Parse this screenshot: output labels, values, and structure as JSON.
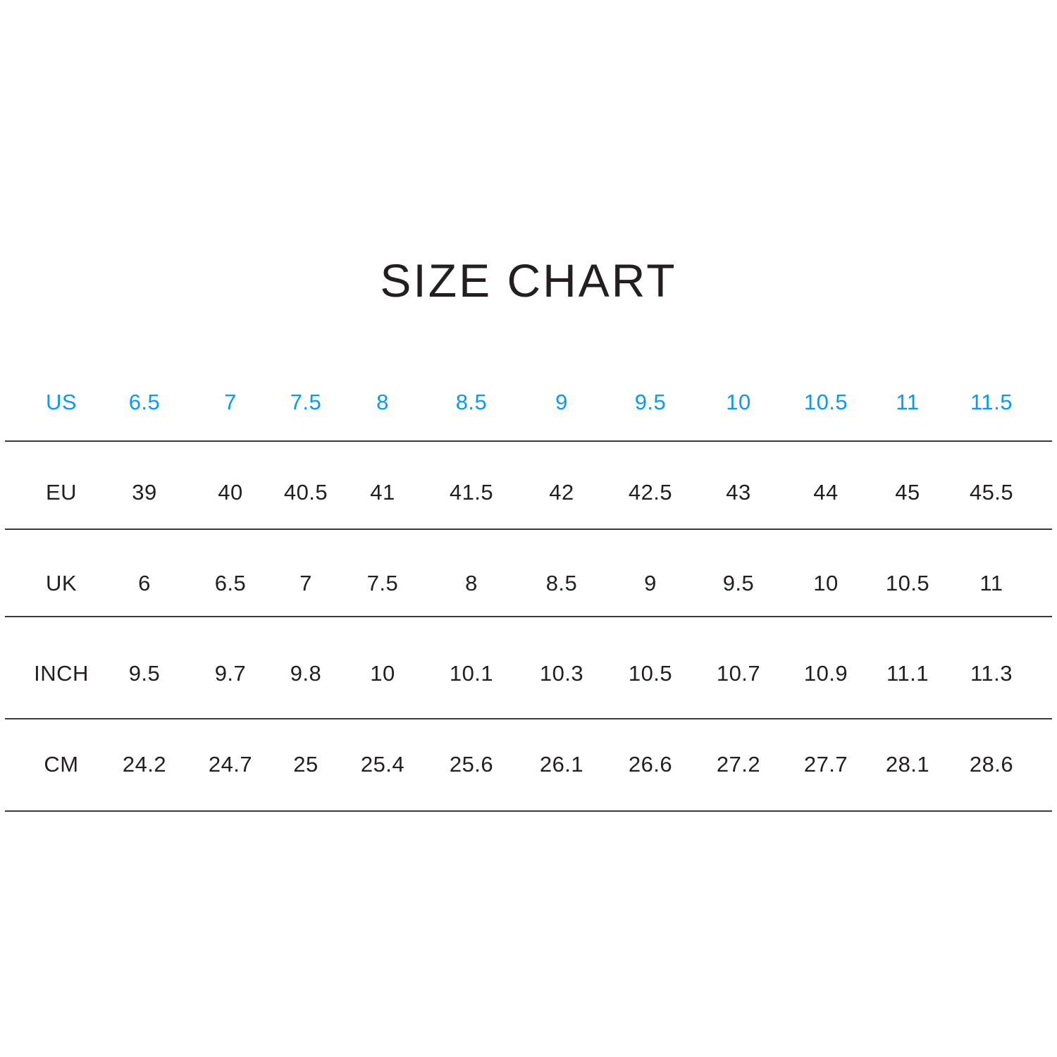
{
  "title": "SIZE CHART",
  "colors": {
    "header_row": "#0a9af5",
    "text": "#231f20",
    "divider": "#3a3a3a"
  },
  "table": {
    "rows": [
      {
        "label": "US",
        "values": [
          "6.5",
          "7",
          "7.5",
          "8",
          "8.5",
          "9",
          "9.5",
          "10",
          "10.5",
          "11",
          "11.5"
        ]
      },
      {
        "label": "EU",
        "values": [
          "39",
          "40",
          "40.5",
          "41",
          "41.5",
          "42",
          "42.5",
          "43",
          "44",
          "45",
          "45.5"
        ]
      },
      {
        "label": "UK",
        "values": [
          "6",
          "6.5",
          "7",
          "7.5",
          "8",
          "8.5",
          "9",
          "9.5",
          "10",
          "10.5",
          "11"
        ]
      },
      {
        "label": "INCH",
        "values": [
          "9.5",
          "9.7",
          "9.8",
          "10",
          "10.1",
          "10.3",
          "10.5",
          "10.7",
          "10.9",
          "11.1",
          "11.3"
        ]
      },
      {
        "label": "CM",
        "values": [
          "24.2",
          "24.7",
          "25",
          "25.4",
          "25.6",
          "26.1",
          "26.6",
          "27.2",
          "27.7",
          "28.1",
          "28.6"
        ]
      }
    ]
  }
}
